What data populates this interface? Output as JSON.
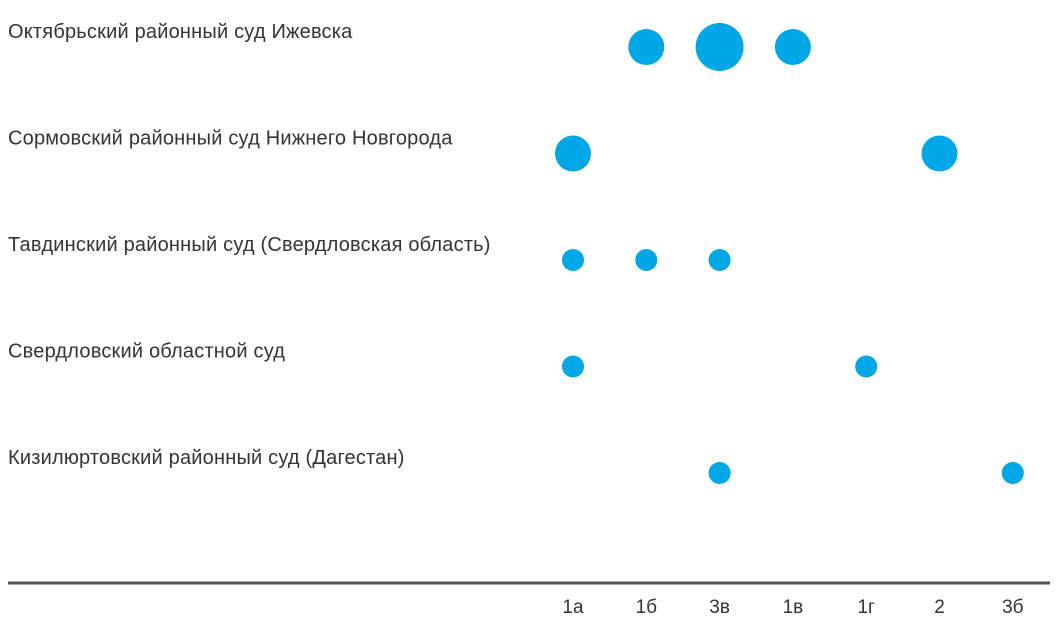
{
  "chart_data": {
    "type": "scatter",
    "title": "",
    "xlabel": "",
    "ylabel": "",
    "grid": false,
    "legend": "none",
    "x_categories": [
      "1а",
      "1б",
      "3в",
      "1в",
      "1г",
      "2",
      "3б"
    ],
    "y_categories": [
      "Октябрьский районный суд Ижевска",
      "Сормовский районный суд Нижнего Новгорода",
      "Тавдинский районный суд (Свердловская область)",
      "Свердловский областной суд",
      "Кизилюртовский районный суд (Дагестан)"
    ],
    "points": [
      {
        "y": "Октябрьский районный суд Ижевска",
        "x": "1б",
        "size": 2
      },
      {
        "y": "Октябрьский районный суд Ижевска",
        "x": "3в",
        "size": 3
      },
      {
        "y": "Октябрьский районный суд Ижевска",
        "x": "1в",
        "size": 2
      },
      {
        "y": "Сормовский районный суд Нижнего Новгорода",
        "x": "1а",
        "size": 2
      },
      {
        "y": "Сормовский районный суд Нижнего Новгорода",
        "x": "2",
        "size": 2
      },
      {
        "y": "Тавдинский районный суд (Свердловская область)",
        "x": "1а",
        "size": 1
      },
      {
        "y": "Тавдинский районный суд (Свердловская область)",
        "x": "1б",
        "size": 1
      },
      {
        "y": "Тавдинский районный суд (Свердловская область)",
        "x": "3в",
        "size": 1
      },
      {
        "y": "Свердловский областной суд",
        "x": "1а",
        "size": 1
      },
      {
        "y": "Свердловский областной суд",
        "x": "1г",
        "size": 1
      },
      {
        "y": "Кизилюртовский районный суд (Дагестан)",
        "x": "3в",
        "size": 1
      },
      {
        "y": "Кизилюртовский районный суд (Дагестан)",
        "x": "3б",
        "size": 1
      }
    ],
    "colors": {
      "marker": "#00a7e6",
      "axis": "#555555",
      "text": "#333333"
    }
  }
}
